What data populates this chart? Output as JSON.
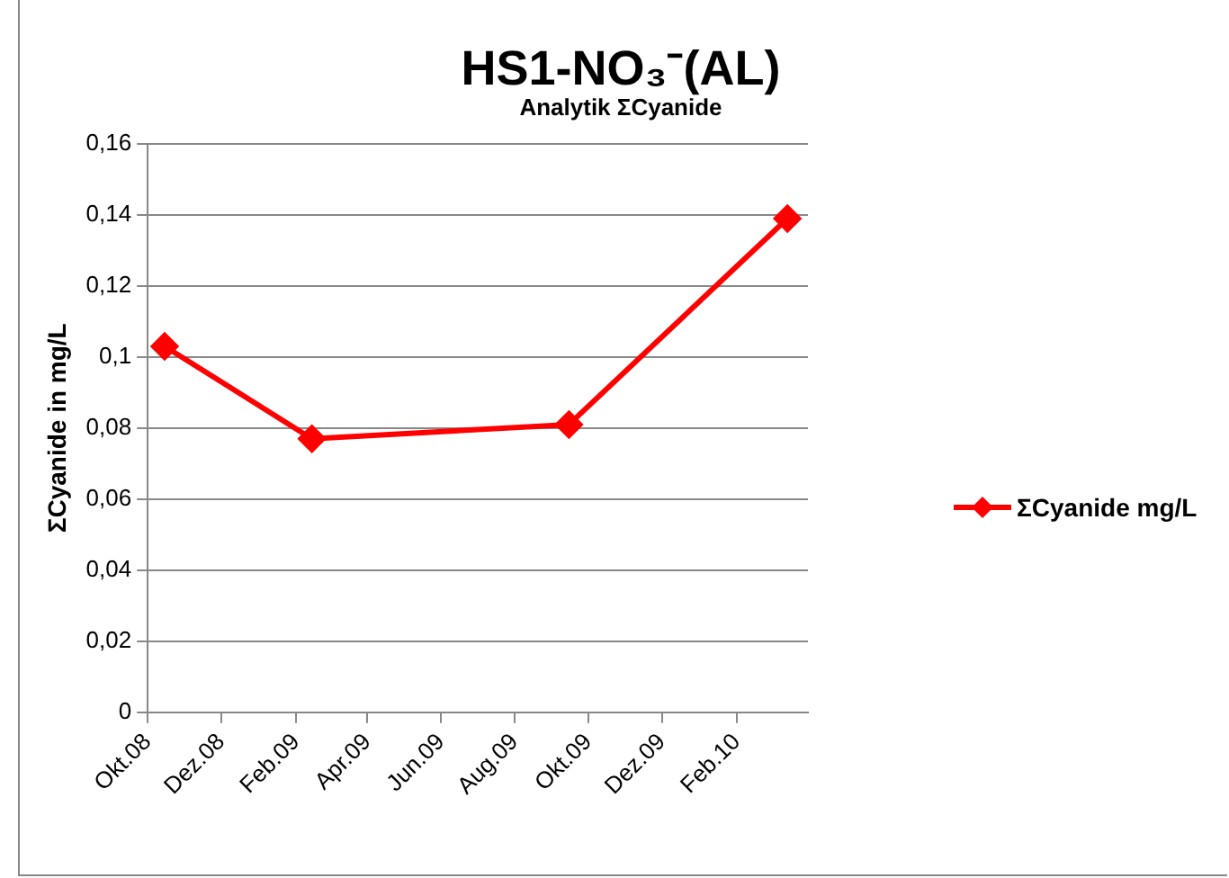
{
  "chart_data": {
    "type": "line",
    "title": "HS1-NO₃⁻(AL)",
    "subtitle": "Analytik ΣCyanide",
    "ylabel": "ΣCyanide in mg/L",
    "x": [
      "2008-10-15",
      "2009-02-14",
      "2009-09-15",
      "2010-03-15"
    ],
    "series": [
      {
        "name": "ΣCyanide mg/L",
        "color": "#ff0000",
        "values": [
          0.103,
          0.077,
          0.081,
          0.139
        ]
      }
    ],
    "xlim": [
      "2008-10-01",
      "2010-04-01"
    ],
    "xticks": [
      {
        "value": "2008-10-01",
        "label": "Okt.08"
      },
      {
        "value": "2008-12-01",
        "label": "Dez.08"
      },
      {
        "value": "2009-02-01",
        "label": "Feb.09"
      },
      {
        "value": "2009-04-01",
        "label": "Apr.09"
      },
      {
        "value": "2009-06-01",
        "label": "Jun.09"
      },
      {
        "value": "2009-08-01",
        "label": "Aug.09"
      },
      {
        "value": "2009-10-01",
        "label": "Okt.09"
      },
      {
        "value": "2009-12-01",
        "label": "Dez.09"
      },
      {
        "value": "2010-02-01",
        "label": "Feb.10"
      }
    ],
    "ylim": [
      0,
      0.16
    ],
    "yticks": [
      0,
      {
        "value": 0.02,
        "label": "0,02"
      },
      {
        "value": 0.04,
        "label": "0,04"
      },
      {
        "value": 0.06,
        "label": "0,06"
      },
      {
        "value": 0.08,
        "label": "0,08"
      },
      {
        "value": 0.1,
        "label": "0,1"
      },
      {
        "value": 0.12,
        "label": "0,12"
      },
      {
        "value": 0.14,
        "label": "0,14"
      },
      {
        "value": 0.16,
        "label": "0,16"
      }
    ],
    "grid": "y",
    "legend": "right",
    "marker": "diamond",
    "line_style": "solid"
  }
}
